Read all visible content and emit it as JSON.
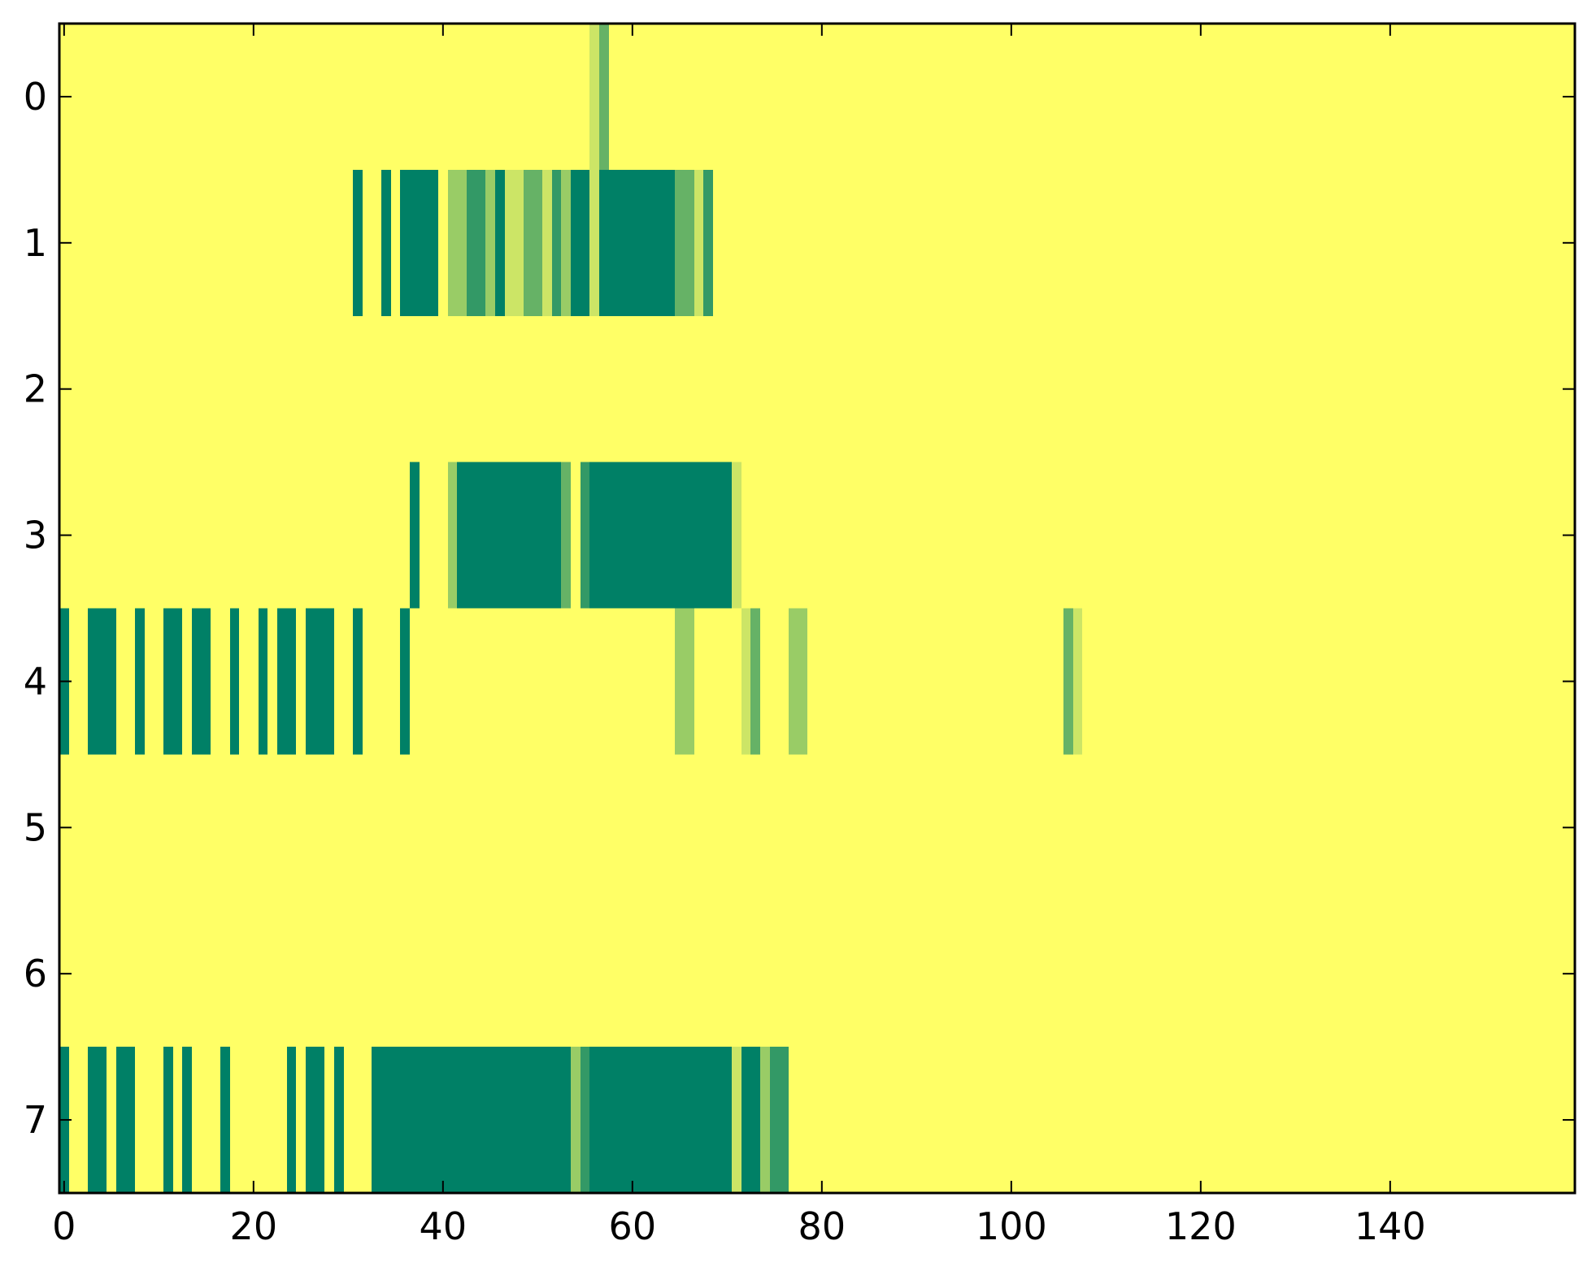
{
  "chart_data": {
    "type": "heatmap",
    "title": "",
    "xlabel": "",
    "ylabel": "",
    "n_rows": 8,
    "n_cols": 160,
    "xlim": [
      -0.5,
      159.5
    ],
    "ylim": [
      7.5,
      -0.5
    ],
    "x_ticks": [
      0,
      20,
      40,
      60,
      80,
      100,
      120,
      140
    ],
    "x_tick_labels": [
      "0",
      "20",
      "40",
      "60",
      "80",
      "100",
      "120",
      "140"
    ],
    "y_ticks": [
      0,
      1,
      2,
      3,
      4,
      5,
      6,
      7
    ],
    "y_tick_labels": [
      "0",
      "1",
      "2",
      "3",
      "4",
      "5",
      "6",
      "7"
    ],
    "grid": false,
    "colormap": "summer_r",
    "value_range": [
      0,
      1
    ],
    "default_value": 0,
    "color_levels": [
      {
        "value": 0,
        "color": "#ffff66"
      },
      {
        "value": 0.2,
        "color": "#cce566"
      },
      {
        "value": 0.4,
        "color": "#99cc66"
      },
      {
        "value": 0.6,
        "color": "#66b266"
      },
      {
        "value": 0.8,
        "color": "#339966"
      },
      {
        "value": 1,
        "color": "#008066"
      }
    ],
    "runs_format": [
      "row",
      "start_col",
      "end_col",
      "value"
    ],
    "runs": [
      [
        0,
        56,
        56,
        0.2
      ],
      [
        0,
        57,
        57,
        0.6
      ],
      [
        1,
        31,
        31,
        1
      ],
      [
        1,
        34,
        34,
        1
      ],
      [
        1,
        36,
        39,
        1
      ],
      [
        1,
        41,
        42,
        0.4
      ],
      [
        1,
        43,
        44,
        0.8
      ],
      [
        1,
        45,
        45,
        0.4
      ],
      [
        1,
        46,
        46,
        1
      ],
      [
        1,
        47,
        48,
        0.2
      ],
      [
        1,
        49,
        50,
        0.6
      ],
      [
        1,
        51,
        51,
        0.2
      ],
      [
        1,
        52,
        52,
        0.8
      ],
      [
        1,
        53,
        53,
        0.4
      ],
      [
        1,
        54,
        55,
        1
      ],
      [
        1,
        56,
        56,
        0.2
      ],
      [
        1,
        57,
        64,
        1
      ],
      [
        1,
        65,
        66,
        0.6
      ],
      [
        1,
        67,
        67,
        0.2
      ],
      [
        1,
        68,
        68,
        0.8
      ],
      [
        3,
        37,
        37,
        1
      ],
      [
        3,
        41,
        41,
        0.4
      ],
      [
        3,
        42,
        52,
        1
      ],
      [
        3,
        53,
        53,
        0.6
      ],
      [
        3,
        55,
        55,
        0.8
      ],
      [
        3,
        56,
        70,
        1
      ],
      [
        3,
        71,
        71,
        0.2
      ],
      [
        4,
        0,
        0,
        1
      ],
      [
        4,
        3,
        5,
        1
      ],
      [
        4,
        8,
        8,
        1
      ],
      [
        4,
        11,
        12,
        1
      ],
      [
        4,
        14,
        15,
        1
      ],
      [
        4,
        18,
        18,
        1
      ],
      [
        4,
        21,
        21,
        1
      ],
      [
        4,
        23,
        24,
        1
      ],
      [
        4,
        26,
        28,
        1
      ],
      [
        4,
        31,
        31,
        1
      ],
      [
        4,
        36,
        36,
        1
      ],
      [
        4,
        65,
        66,
        0.4
      ],
      [
        4,
        72,
        72,
        0.2
      ],
      [
        4,
        73,
        73,
        0.6
      ],
      [
        4,
        77,
        78,
        0.4
      ],
      [
        4,
        106,
        106,
        0.6
      ],
      [
        4,
        107,
        107,
        0.2
      ],
      [
        7,
        0,
        0,
        1
      ],
      [
        7,
        3,
        4,
        1
      ],
      [
        7,
        6,
        7,
        1
      ],
      [
        7,
        11,
        11,
        1
      ],
      [
        7,
        13,
        13,
        1
      ],
      [
        7,
        17,
        17,
        1
      ],
      [
        7,
        24,
        24,
        1
      ],
      [
        7,
        26,
        27,
        1
      ],
      [
        7,
        29,
        29,
        1
      ],
      [
        7,
        33,
        53,
        1
      ],
      [
        7,
        54,
        54,
        0.4
      ],
      [
        7,
        55,
        55,
        0.8
      ],
      [
        7,
        56,
        70,
        1
      ],
      [
        7,
        71,
        71,
        0.2
      ],
      [
        7,
        72,
        73,
        1
      ],
      [
        7,
        74,
        74,
        0.4
      ],
      [
        7,
        75,
        76,
        0.8
      ]
    ]
  }
}
